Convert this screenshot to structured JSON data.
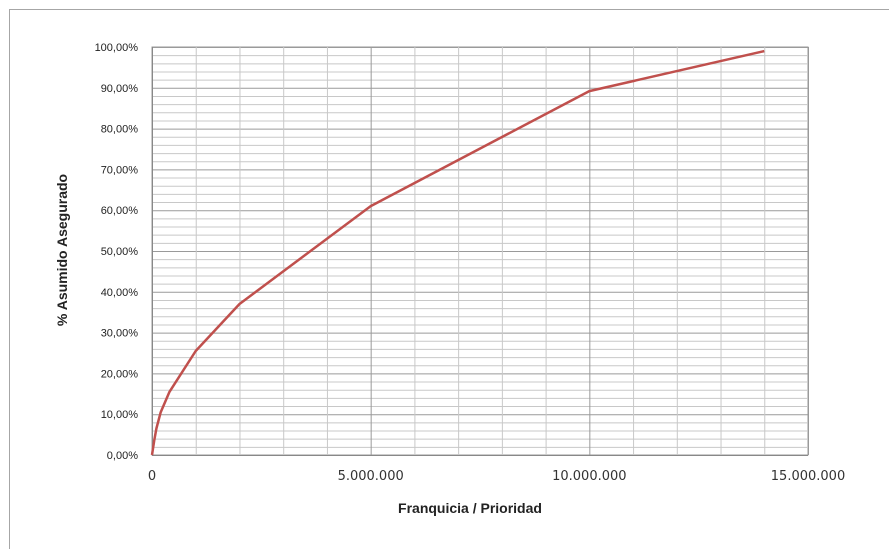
{
  "chart_data": {
    "type": "line",
    "title": "",
    "xlabel": "Franquicia / Prioridad",
    "ylabel": "% Asumido Asegurado",
    "xlim": [
      0,
      15000000
    ],
    "ylim": [
      0,
      100
    ],
    "x_ticks": [
      0,
      5000000,
      10000000,
      15000000
    ],
    "x_tick_labels": [
      "0",
      "5.000.000",
      "10.000.000",
      "15.000.000"
    ],
    "y_ticks": [
      0,
      10,
      20,
      30,
      40,
      50,
      60,
      70,
      80,
      90,
      100
    ],
    "y_tick_labels": [
      "0,00%",
      "10,00%",
      "20,00%",
      "30,00%",
      "40,00%",
      "50,00%",
      "60,00%",
      "70,00%",
      "80,00%",
      "90,00%",
      "100,00%"
    ],
    "grid": true,
    "legend": "none",
    "series": [
      {
        "color": "#c0504d",
        "x": [
          0,
          50000,
          100000,
          200000,
          400000,
          1000000,
          2000000,
          5000000,
          10000000,
          14000000
        ],
        "y": [
          0,
          3.5,
          6.5,
          10.5,
          15.5,
          25.5,
          37,
          61,
          89.2,
          99
        ]
      }
    ]
  }
}
